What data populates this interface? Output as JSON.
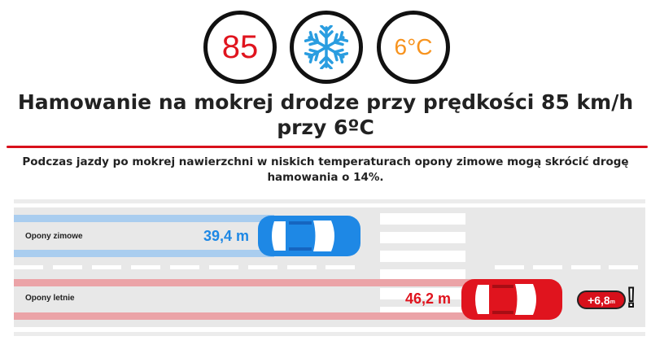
{
  "indicators": {
    "speed": "85",
    "weather_icon": "snowflake-icon",
    "temperature": "6°C"
  },
  "title": "Hamowanie na mokrej drodze przy prędkości 85 km/h przy 6ºC",
  "subtitle": "Podczas jazdy po mokrej nawierzchni w niskich temperaturach opony zimowe mogą skrócić drogę hamowania o 14%.",
  "lanes": [
    {
      "label": "Opony zimowe",
      "distance": "39,4 m",
      "color": "#1e88e5",
      "trail_color": "#a9cdef"
    },
    {
      "label": "Opony letnie",
      "distance": "46,2 m",
      "color": "#e0141e",
      "trail_color": "#eba3a7"
    }
  ],
  "difference": {
    "value": "+6,8",
    "unit": "m",
    "icon": "exclamation-icon"
  },
  "colors": {
    "accent_red": "#d8101b",
    "blue": "#1e88e5",
    "orange": "#f7931e",
    "road": "#e8e8e8"
  }
}
